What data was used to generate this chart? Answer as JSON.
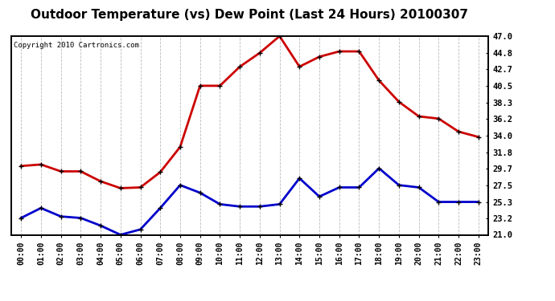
{
  "title": "Outdoor Temperature (vs) Dew Point (Last 24 Hours) 20100307",
  "copyright": "Copyright 2010 Cartronics.com",
  "hours": [
    "00:00",
    "01:00",
    "02:00",
    "03:00",
    "04:00",
    "05:00",
    "06:00",
    "07:00",
    "08:00",
    "09:00",
    "10:00",
    "11:00",
    "12:00",
    "13:00",
    "14:00",
    "15:00",
    "16:00",
    "17:00",
    "18:00",
    "19:00",
    "20:00",
    "21:00",
    "22:00",
    "23:00"
  ],
  "temp": [
    30.0,
    30.2,
    29.3,
    29.3,
    28.0,
    27.1,
    27.2,
    29.2,
    32.5,
    40.5,
    40.5,
    43.0,
    44.8,
    47.0,
    43.0,
    44.3,
    45.0,
    45.0,
    41.2,
    38.4,
    36.5,
    36.2,
    34.5,
    33.8
  ],
  "dew": [
    23.2,
    24.5,
    23.4,
    23.2,
    22.2,
    21.0,
    21.7,
    24.5,
    27.5,
    26.5,
    25.0,
    24.7,
    24.7,
    25.0,
    28.4,
    26.0,
    27.2,
    27.2,
    29.7,
    27.5,
    27.2,
    25.3,
    25.3,
    25.3
  ],
  "temp_color": "#cc0000",
  "dew_color": "#0000cc",
  "background_color": "#ffffff",
  "grid_color": "#bbbbbb",
  "ylim": [
    21.0,
    47.0
  ],
  "yticks": [
    21.0,
    23.2,
    25.3,
    27.5,
    29.7,
    31.8,
    34.0,
    36.2,
    38.3,
    40.5,
    42.7,
    44.8,
    47.0
  ],
  "title_fontsize": 11,
  "copyright_fontsize": 6.5,
  "tick_fontsize": 7,
  "ytick_fontsize": 7.5,
  "marker": "+",
  "marker_size": 5,
  "linewidth": 2.0
}
